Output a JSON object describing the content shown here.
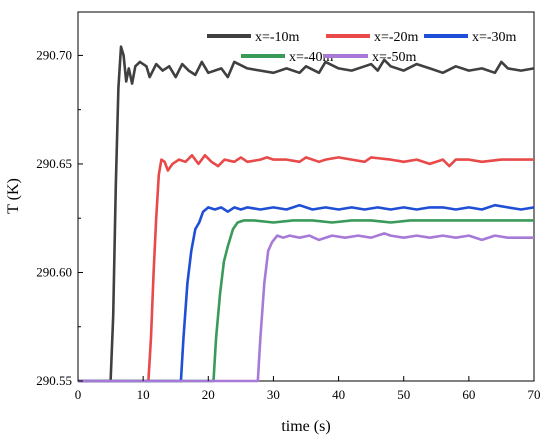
{
  "chart_data": {
    "type": "line",
    "xlabel": "time (s)",
    "ylabel": "T (K)",
    "xlim": [
      0,
      70
    ],
    "ylim": [
      290.55,
      290.72
    ],
    "xticks": [
      0,
      10,
      20,
      30,
      40,
      50,
      60,
      70
    ],
    "yticks": [
      "290.55",
      "290.60",
      "290.65",
      "290.70"
    ],
    "grid": false,
    "legend_position": "top-right",
    "series": [
      {
        "name": "x=-10m",
        "color": "#404040",
        "points": [
          [
            0,
            290.55
          ],
          [
            5,
            290.55
          ],
          [
            5.4,
            290.58
          ],
          [
            5.8,
            290.64
          ],
          [
            6.2,
            290.685
          ],
          [
            6.6,
            290.704
          ],
          [
            7,
            290.7
          ],
          [
            7.4,
            290.688
          ],
          [
            7.8,
            290.694
          ],
          [
            8.3,
            290.687
          ],
          [
            8.8,
            290.695
          ],
          [
            9.5,
            290.697
          ],
          [
            10.5,
            290.695
          ],
          [
            11,
            290.69
          ],
          [
            12,
            290.696
          ],
          [
            13,
            290.693
          ],
          [
            14,
            290.695
          ],
          [
            15,
            290.69
          ],
          [
            16,
            290.696
          ],
          [
            17,
            290.693
          ],
          [
            18,
            290.691
          ],
          [
            19,
            290.697
          ],
          [
            20,
            290.692
          ],
          [
            22,
            290.694
          ],
          [
            23,
            290.69
          ],
          [
            24,
            290.697
          ],
          [
            26,
            290.694
          ],
          [
            28,
            290.693
          ],
          [
            30,
            290.692
          ],
          [
            32,
            290.694
          ],
          [
            34,
            290.692
          ],
          [
            35,
            290.695
          ],
          [
            37,
            290.692
          ],
          [
            38,
            290.697
          ],
          [
            40,
            290.694
          ],
          [
            42,
            290.693
          ],
          [
            44,
            290.695
          ],
          [
            45,
            290.696
          ],
          [
            46,
            290.693
          ],
          [
            47,
            290.698
          ],
          [
            48,
            290.695
          ],
          [
            50,
            290.693
          ],
          [
            52,
            290.696
          ],
          [
            54,
            290.694
          ],
          [
            56,
            290.692
          ],
          [
            58,
            290.695
          ],
          [
            60,
            290.693
          ],
          [
            62,
            290.694
          ],
          [
            64,
            290.692
          ],
          [
            65,
            290.697
          ],
          [
            66,
            290.694
          ],
          [
            68,
            290.693
          ],
          [
            70,
            290.694
          ]
        ]
      },
      {
        "name": "x=-20m",
        "color": "#e84a4a",
        "points": [
          [
            0,
            290.55
          ],
          [
            10.8,
            290.55
          ],
          [
            11.2,
            290.57
          ],
          [
            11.6,
            290.6
          ],
          [
            12,
            290.625
          ],
          [
            12.4,
            290.645
          ],
          [
            12.8,
            290.652
          ],
          [
            13.3,
            290.651
          ],
          [
            13.8,
            290.647
          ],
          [
            14.5,
            290.65
          ],
          [
            15.5,
            290.652
          ],
          [
            16.5,
            290.651
          ],
          [
            17.5,
            290.654
          ],
          [
            18.5,
            290.65
          ],
          [
            19.5,
            290.654
          ],
          [
            20.5,
            290.651
          ],
          [
            21.5,
            290.649
          ],
          [
            22.5,
            290.652
          ],
          [
            24,
            290.651
          ],
          [
            25,
            290.653
          ],
          [
            26,
            290.651
          ],
          [
            28,
            290.652
          ],
          [
            29,
            290.653
          ],
          [
            30,
            290.652
          ],
          [
            32,
            290.652
          ],
          [
            34,
            290.651
          ],
          [
            35,
            290.653
          ],
          [
            37,
            290.651
          ],
          [
            38,
            290.652
          ],
          [
            40,
            290.653
          ],
          [
            42,
            290.652
          ],
          [
            44,
            290.651
          ],
          [
            45,
            290.653
          ],
          [
            48,
            290.652
          ],
          [
            50,
            290.651
          ],
          [
            52,
            290.652
          ],
          [
            54,
            290.65
          ],
          [
            56,
            290.652
          ],
          [
            57,
            290.649
          ],
          [
            58,
            290.652
          ],
          [
            60,
            290.652
          ],
          [
            62,
            290.651
          ],
          [
            65,
            290.652
          ],
          [
            67,
            290.652
          ],
          [
            70,
            290.652
          ]
        ]
      },
      {
        "name": "x=-30m",
        "color": "#1f4fd6",
        "points": [
          [
            0,
            290.55
          ],
          [
            15.8,
            290.55
          ],
          [
            16.2,
            290.57
          ],
          [
            16.8,
            290.595
          ],
          [
            17.4,
            290.61
          ],
          [
            18,
            290.62
          ],
          [
            18.6,
            290.623
          ],
          [
            19.2,
            290.628
          ],
          [
            20,
            290.63
          ],
          [
            21,
            290.629
          ],
          [
            22,
            290.63
          ],
          [
            23,
            290.628
          ],
          [
            24,
            290.63
          ],
          [
            25,
            290.629
          ],
          [
            26,
            290.63
          ],
          [
            28,
            290.629
          ],
          [
            30,
            290.63
          ],
          [
            32,
            290.629
          ],
          [
            34,
            290.631
          ],
          [
            36,
            290.629
          ],
          [
            38,
            290.63
          ],
          [
            40,
            290.629
          ],
          [
            42,
            290.63
          ],
          [
            44,
            290.629
          ],
          [
            46,
            290.63
          ],
          [
            48,
            290.629
          ],
          [
            50,
            290.63
          ],
          [
            52,
            290.629
          ],
          [
            54,
            290.63
          ],
          [
            56,
            290.63
          ],
          [
            58,
            290.629
          ],
          [
            60,
            290.63
          ],
          [
            62,
            290.629
          ],
          [
            64,
            290.631
          ],
          [
            66,
            290.63
          ],
          [
            68,
            290.629
          ],
          [
            70,
            290.63
          ]
        ]
      },
      {
        "name": "x=-40m",
        "color": "#3a9a5a",
        "points": [
          [
            0,
            290.55
          ],
          [
            20.8,
            290.55
          ],
          [
            21.2,
            290.57
          ],
          [
            21.8,
            290.59
          ],
          [
            22.4,
            290.605
          ],
          [
            23,
            290.612
          ],
          [
            23.8,
            290.62
          ],
          [
            24.5,
            290.623
          ],
          [
            25.5,
            290.624
          ],
          [
            27,
            290.624
          ],
          [
            30,
            290.623
          ],
          [
            33,
            290.624
          ],
          [
            36,
            290.624
          ],
          [
            39,
            290.623
          ],
          [
            42,
            290.624
          ],
          [
            45,
            290.624
          ],
          [
            48,
            290.623
          ],
          [
            51,
            290.624
          ],
          [
            54,
            290.624
          ],
          [
            57,
            290.624
          ],
          [
            60,
            290.624
          ],
          [
            63,
            290.624
          ],
          [
            66,
            290.624
          ],
          [
            70,
            290.624
          ]
        ]
      },
      {
        "name": "x=-50m",
        "color": "#a77ad8",
        "points": [
          [
            0,
            290.55
          ],
          [
            27.6,
            290.55
          ],
          [
            28,
            290.57
          ],
          [
            28.6,
            290.595
          ],
          [
            29.2,
            290.61
          ],
          [
            29.8,
            290.614
          ],
          [
            30.6,
            290.617
          ],
          [
            31.5,
            290.616
          ],
          [
            32.5,
            290.617
          ],
          [
            34,
            290.616
          ],
          [
            35.5,
            290.617
          ],
          [
            37,
            290.615
          ],
          [
            39,
            290.617
          ],
          [
            41,
            290.616
          ],
          [
            43,
            290.617
          ],
          [
            45,
            290.616
          ],
          [
            47,
            290.618
          ],
          [
            48,
            290.617
          ],
          [
            50,
            290.616
          ],
          [
            52,
            290.617
          ],
          [
            54,
            290.616
          ],
          [
            56,
            290.617
          ],
          [
            58,
            290.616
          ],
          [
            60,
            290.617
          ],
          [
            62,
            290.615
          ],
          [
            64,
            290.617
          ],
          [
            66,
            290.616
          ],
          [
            68,
            290.616
          ],
          [
            70,
            290.616
          ]
        ]
      }
    ]
  }
}
